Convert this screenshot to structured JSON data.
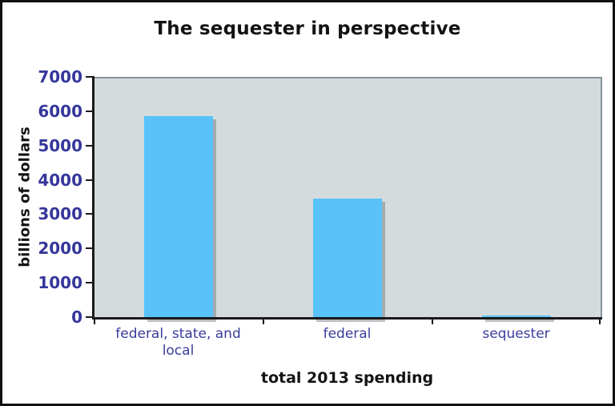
{
  "chart_data": {
    "type": "bar",
    "title": "The sequester in perspective",
    "xlabel": "total 2013 spending",
    "ylabel": "billions of dollars",
    "categories": [
      "federal, state, and local",
      "federal",
      "sequester"
    ],
    "values": [
      5900,
      3500,
      85
    ],
    "ylim": [
      0,
      7000
    ],
    "yticks": [
      0,
      1000,
      2000,
      3000,
      4000,
      5000,
      6000,
      7000
    ],
    "grid": false,
    "legend": "none",
    "colors": {
      "bar_fill": "#58c2f9",
      "plot_background": "#d3dbdc",
      "plot_border": "#84949b",
      "axis_line": "#1a1a1a",
      "tick_label_text": "#35379b",
      "title_text": "#131316",
      "outer_border": "#101010"
    }
  }
}
